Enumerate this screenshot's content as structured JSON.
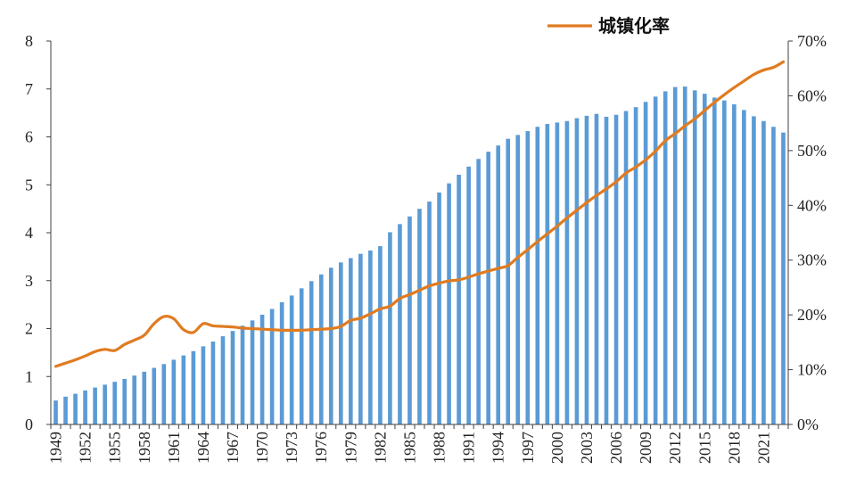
{
  "chart_data": {
    "type": "bar+line",
    "x": [
      1949,
      1950,
      1951,
      1952,
      1953,
      1954,
      1955,
      1956,
      1957,
      1958,
      1959,
      1960,
      1961,
      1962,
      1963,
      1964,
      1965,
      1966,
      1967,
      1968,
      1969,
      1970,
      1971,
      1972,
      1973,
      1974,
      1975,
      1976,
      1977,
      1978,
      1979,
      1980,
      1981,
      1982,
      1983,
      1984,
      1985,
      1986,
      1987,
      1988,
      1989,
      1990,
      1991,
      1992,
      1993,
      1994,
      1995,
      1996,
      1997,
      1998,
      1999,
      2000,
      2001,
      2002,
      2003,
      2004,
      2005,
      2006,
      2007,
      2008,
      2009,
      2010,
      2011,
      2012,
      2013,
      2014,
      2015,
      2016,
      2017,
      2018,
      2019,
      2020,
      2021,
      2022,
      2023
    ],
    "x_tick_labels": [
      "1949",
      "1952",
      "1955",
      "1958",
      "1961",
      "1964",
      "1967",
      "1970",
      "1973",
      "1976",
      "1979",
      "1982",
      "1985",
      "1988",
      "1991",
      "1994",
      "1997",
      "2000",
      "2003",
      "2006",
      "2009",
      "2012",
      "2015",
      "2018",
      "2021"
    ],
    "bar_series": {
      "values": [
        0.5,
        0.58,
        0.64,
        0.71,
        0.77,
        0.83,
        0.89,
        0.95,
        1.02,
        1.1,
        1.18,
        1.26,
        1.35,
        1.44,
        1.53,
        1.63,
        1.73,
        1.84,
        1.95,
        2.06,
        2.17,
        2.29,
        2.41,
        2.55,
        2.69,
        2.84,
        2.99,
        3.13,
        3.27,
        3.38,
        3.47,
        3.56,
        3.63,
        3.72,
        4.01,
        4.18,
        4.34,
        4.5,
        4.65,
        4.84,
        5.03,
        5.21,
        5.38,
        5.54,
        5.69,
        5.82,
        5.96,
        6.04,
        6.12,
        6.21,
        6.27,
        6.3,
        6.33,
        6.39,
        6.44,
        6.48,
        6.42,
        6.46,
        6.54,
        6.62,
        6.73,
        6.84,
        6.95,
        7.04,
        7.05,
        6.97,
        6.9,
        6.82,
        6.76,
        6.68,
        6.56,
        6.43,
        6.33,
        6.21,
        6.09
      ],
      "color": "#5b9bd5",
      "axis": "left",
      "ylim": [
        0,
        8
      ],
      "y_ticks": [
        "0",
        "1",
        "2",
        "3",
        "4",
        "5",
        "6",
        "7",
        "8"
      ]
    },
    "line_series": {
      "name": "城镇化率",
      "values": [
        10.6,
        11.2,
        11.8,
        12.5,
        13.3,
        13.7,
        13.5,
        14.6,
        15.4,
        16.3,
        18.4,
        19.7,
        19.3,
        17.3,
        16.8,
        18.4,
        18.0,
        17.9,
        17.8,
        17.6,
        17.5,
        17.4,
        17.3,
        17.2,
        17.2,
        17.2,
        17.3,
        17.4,
        17.5,
        17.9,
        19.0,
        19.4,
        20.2,
        21.1,
        21.6,
        23.0,
        23.7,
        24.5,
        25.3,
        25.8,
        26.2,
        26.4,
        26.9,
        27.5,
        28.0,
        28.5,
        29.0,
        30.5,
        31.9,
        33.4,
        34.8,
        36.2,
        37.7,
        39.1,
        40.5,
        41.8,
        43.0,
        44.3,
        45.9,
        47.0,
        48.3,
        49.9,
        51.8,
        53.1,
        54.5,
        55.8,
        57.3,
        58.8,
        60.2,
        61.5,
        62.7,
        63.9,
        64.7,
        65.2,
        66.2
      ],
      "color": "#e07b20",
      "axis": "right",
      "ylim": [
        0,
        70
      ],
      "y_ticks": [
        "0%",
        "10%",
        "20%",
        "30%",
        "40%",
        "50%",
        "60%",
        "70%"
      ]
    },
    "legend": {
      "label": "城镇化率",
      "placement": "top-right"
    },
    "title": "",
    "xlabel": "",
    "ylabel": ""
  }
}
